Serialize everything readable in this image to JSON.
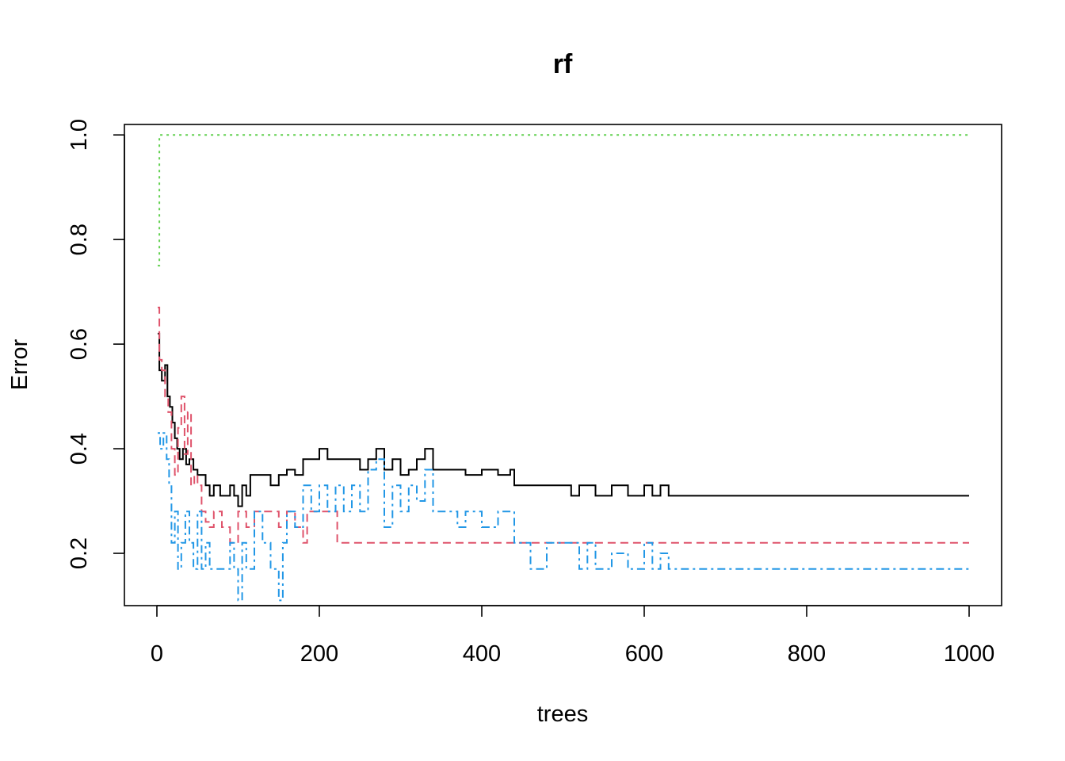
{
  "chart_data": {
    "type": "line",
    "title": "rf",
    "xlabel": "trees",
    "ylabel": "Error",
    "xlim": [
      -40,
      1040
    ],
    "ylim": [
      0.1,
      1.02
    ],
    "x_ticks": [
      0,
      200,
      400,
      600,
      800,
      1000
    ],
    "y_ticks": [
      0.2,
      0.4,
      0.6,
      0.8,
      1.0
    ],
    "grid": false,
    "legend": "none",
    "series": [
      {
        "color": "#000000",
        "dash": "solid",
        "points": [
          [
            1,
            0.62
          ],
          [
            3,
            0.55
          ],
          [
            6,
            0.53
          ],
          [
            10,
            0.56
          ],
          [
            13,
            0.5
          ],
          [
            16,
            0.48
          ],
          [
            19,
            0.45
          ],
          [
            22,
            0.42
          ],
          [
            25,
            0.4
          ],
          [
            28,
            0.38
          ],
          [
            32,
            0.4
          ],
          [
            36,
            0.37
          ],
          [
            40,
            0.38
          ],
          [
            45,
            0.36
          ],
          [
            50,
            0.35
          ],
          [
            55,
            0.35
          ],
          [
            60,
            0.33
          ],
          [
            65,
            0.31
          ],
          [
            70,
            0.33
          ],
          [
            78,
            0.31
          ],
          [
            85,
            0.31
          ],
          [
            90,
            0.33
          ],
          [
            95,
            0.31
          ],
          [
            100,
            0.29
          ],
          [
            105,
            0.33
          ],
          [
            110,
            0.31
          ],
          [
            115,
            0.35
          ],
          [
            130,
            0.35
          ],
          [
            140,
            0.33
          ],
          [
            150,
            0.35
          ],
          [
            160,
            0.36
          ],
          [
            170,
            0.35
          ],
          [
            180,
            0.38
          ],
          [
            190,
            0.38
          ],
          [
            200,
            0.4
          ],
          [
            210,
            0.38
          ],
          [
            230,
            0.38
          ],
          [
            250,
            0.36
          ],
          [
            260,
            0.38
          ],
          [
            270,
            0.4
          ],
          [
            280,
            0.36
          ],
          [
            290,
            0.38
          ],
          [
            300,
            0.35
          ],
          [
            310,
            0.36
          ],
          [
            320,
            0.38
          ],
          [
            330,
            0.4
          ],
          [
            340,
            0.36
          ],
          [
            360,
            0.36
          ],
          [
            380,
            0.35
          ],
          [
            400,
            0.36
          ],
          [
            420,
            0.35
          ],
          [
            435,
            0.36
          ],
          [
            440,
            0.33
          ],
          [
            460,
            0.33
          ],
          [
            500,
            0.33
          ],
          [
            510,
            0.31
          ],
          [
            520,
            0.33
          ],
          [
            540,
            0.31
          ],
          [
            560,
            0.33
          ],
          [
            580,
            0.31
          ],
          [
            600,
            0.33
          ],
          [
            610,
            0.31
          ],
          [
            620,
            0.33
          ],
          [
            630,
            0.31
          ],
          [
            640,
            0.31
          ],
          [
            700,
            0.31
          ],
          [
            800,
            0.31
          ],
          [
            900,
            0.31
          ],
          [
            1000,
            0.31
          ]
        ]
      },
      {
        "color": "#DF536B",
        "dash": "dashed",
        "points": [
          [
            1,
            0.67
          ],
          [
            3,
            0.57
          ],
          [
            6,
            0.55
          ],
          [
            10,
            0.5
          ],
          [
            14,
            0.47
          ],
          [
            18,
            0.4
          ],
          [
            22,
            0.35
          ],
          [
            26,
            0.44
          ],
          [
            30,
            0.5
          ],
          [
            34,
            0.39
          ],
          [
            38,
            0.47
          ],
          [
            42,
            0.33
          ],
          [
            46,
            0.35
          ],
          [
            50,
            0.33
          ],
          [
            55,
            0.28
          ],
          [
            60,
            0.26
          ],
          [
            65,
            0.25
          ],
          [
            70,
            0.28
          ],
          [
            80,
            0.25
          ],
          [
            90,
            0.22
          ],
          [
            100,
            0.28
          ],
          [
            110,
            0.25
          ],
          [
            120,
            0.28
          ],
          [
            140,
            0.28
          ],
          [
            150,
            0.25
          ],
          [
            160,
            0.28
          ],
          [
            170,
            0.25
          ],
          [
            180,
            0.22
          ],
          [
            185,
            0.28
          ],
          [
            200,
            0.28
          ],
          [
            220,
            0.28
          ],
          [
            222,
            0.22
          ],
          [
            300,
            0.22
          ],
          [
            400,
            0.22
          ],
          [
            500,
            0.22
          ],
          [
            600,
            0.22
          ],
          [
            700,
            0.22
          ],
          [
            800,
            0.22
          ],
          [
            900,
            0.22
          ],
          [
            1000,
            0.22
          ]
        ]
      },
      {
        "color": "#61D04F",
        "dash": "dotted",
        "points": [
          [
            1,
            0.75
          ],
          [
            3,
            1.0
          ],
          [
            5,
            1.0
          ],
          [
            100,
            1.0
          ],
          [
            300,
            1.0
          ],
          [
            500,
            1.0
          ],
          [
            700,
            1.0
          ],
          [
            900,
            1.0
          ],
          [
            1000,
            1.0
          ]
        ]
      },
      {
        "color": "#2297E6",
        "dash": "dashdot",
        "points": [
          [
            1,
            0.43
          ],
          [
            4,
            0.4
          ],
          [
            8,
            0.43
          ],
          [
            12,
            0.38
          ],
          [
            15,
            0.33
          ],
          [
            18,
            0.22
          ],
          [
            22,
            0.28
          ],
          [
            26,
            0.17
          ],
          [
            30,
            0.22
          ],
          [
            35,
            0.28
          ],
          [
            40,
            0.22
          ],
          [
            45,
            0.17
          ],
          [
            50,
            0.28
          ],
          [
            55,
            0.17
          ],
          [
            60,
            0.22
          ],
          [
            65,
            0.17
          ],
          [
            70,
            0.17
          ],
          [
            80,
            0.17
          ],
          [
            90,
            0.22
          ],
          [
            95,
            0.17
          ],
          [
            100,
            0.11
          ],
          [
            105,
            0.22
          ],
          [
            110,
            0.17
          ],
          [
            120,
            0.28
          ],
          [
            130,
            0.22
          ],
          [
            140,
            0.17
          ],
          [
            150,
            0.11
          ],
          [
            155,
            0.22
          ],
          [
            160,
            0.28
          ],
          [
            170,
            0.25
          ],
          [
            180,
            0.33
          ],
          [
            190,
            0.28
          ],
          [
            200,
            0.33
          ],
          [
            210,
            0.28
          ],
          [
            220,
            0.33
          ],
          [
            230,
            0.28
          ],
          [
            240,
            0.33
          ],
          [
            250,
            0.28
          ],
          [
            260,
            0.36
          ],
          [
            270,
            0.38
          ],
          [
            280,
            0.25
          ],
          [
            290,
            0.33
          ],
          [
            300,
            0.28
          ],
          [
            310,
            0.33
          ],
          [
            320,
            0.3
          ],
          [
            330,
            0.36
          ],
          [
            340,
            0.28
          ],
          [
            360,
            0.28
          ],
          [
            370,
            0.25
          ],
          [
            380,
            0.28
          ],
          [
            400,
            0.25
          ],
          [
            420,
            0.28
          ],
          [
            430,
            0.28
          ],
          [
            440,
            0.22
          ],
          [
            460,
            0.17
          ],
          [
            480,
            0.22
          ],
          [
            500,
            0.22
          ],
          [
            520,
            0.17
          ],
          [
            530,
            0.22
          ],
          [
            540,
            0.17
          ],
          [
            560,
            0.2
          ],
          [
            580,
            0.17
          ],
          [
            600,
            0.22
          ],
          [
            610,
            0.17
          ],
          [
            620,
            0.2
          ],
          [
            630,
            0.17
          ],
          [
            640,
            0.17
          ],
          [
            700,
            0.17
          ],
          [
            800,
            0.17
          ],
          [
            900,
            0.17
          ],
          [
            1000,
            0.17
          ]
        ]
      }
    ]
  }
}
